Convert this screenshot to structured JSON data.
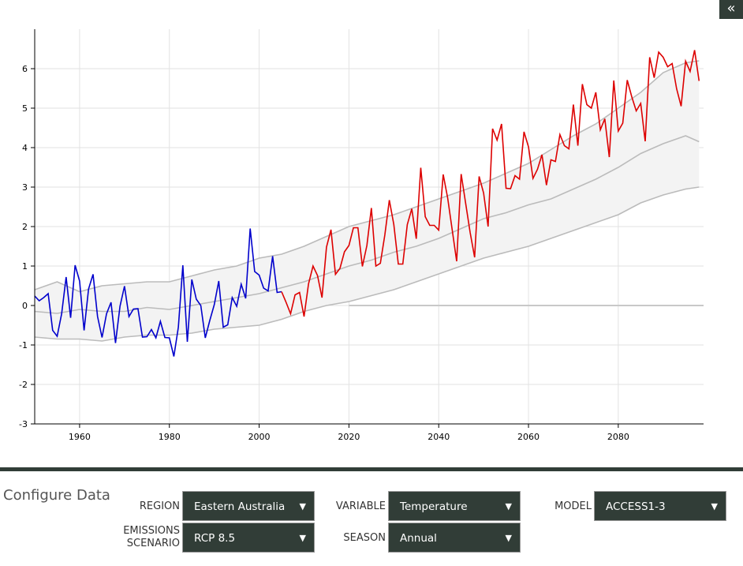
{
  "collapse_button": "«",
  "chart_data": {
    "type": "line",
    "title": "",
    "xlabel": "",
    "ylabel": "",
    "xlim": [
      1950,
      2099
    ],
    "ylim": [
      -3,
      7
    ],
    "x_ticks": [
      1960,
      1980,
      2000,
      2020,
      2040,
      2060,
      2080
    ],
    "y_ticks": [
      -3,
      -2,
      -1,
      0,
      1,
      2,
      3,
      4,
      5,
      6
    ],
    "grid": true,
    "colors": {
      "historical": "#0000cc",
      "projection": "#dd0000",
      "band": "#bbbbbb",
      "band_fill": "#f3f3f3"
    },
    "historical": {
      "start_year": 1950,
      "values": [
        0.24,
        0.12,
        0.2,
        0.3,
        -0.63,
        -0.78,
        -0.21,
        0.72,
        -0.31,
        1.02,
        0.62,
        -0.63,
        0.42,
        0.79,
        -0.28,
        -0.81,
        -0.21,
        0.08,
        -0.95,
        -0.02,
        0.49,
        -0.28,
        -0.09,
        -0.08,
        -0.8,
        -0.79,
        -0.61,
        -0.82,
        -0.4,
        -0.81,
        -0.82,
        -1.29,
        -0.55,
        1.02,
        -0.92,
        0.66,
        0.16,
        0.0,
        -0.82,
        -0.38,
        0.02,
        0.62,
        -0.55,
        -0.49,
        0.2,
        -0.02,
        0.54,
        0.18,
        1.95,
        0.86,
        0.77,
        0.44,
        0.37,
        1.25,
        0.33,
        0.35
      ]
    },
    "projection": {
      "start_year": 2006,
      "values": [
        0.08,
        -0.21,
        0.27,
        0.33,
        -0.28,
        0.55,
        1.0,
        0.76,
        0.2,
        1.48,
        1.92,
        0.79,
        0.94,
        1.36,
        1.52,
        1.97,
        1.97,
        0.99,
        1.52,
        2.47,
        1.0,
        1.07,
        1.79,
        2.67,
        2.05,
        1.05,
        1.05,
        2.05,
        2.45,
        1.69,
        3.49,
        2.25,
        2.03,
        2.03,
        1.91,
        3.32,
        2.72,
        1.92,
        1.12,
        3.33,
        2.59,
        1.85,
        1.22,
        3.27,
        2.85,
        2.0,
        4.48,
        4.19,
        4.6,
        2.97,
        2.96,
        3.29,
        3.2,
        4.4,
        4.02,
        3.22,
        3.45,
        3.82,
        3.05,
        3.69,
        3.65,
        4.33,
        4.05,
        3.97,
        5.09,
        4.05,
        5.61,
        5.09,
        5.0,
        5.4,
        4.45,
        4.73,
        3.76,
        5.7,
        4.42,
        4.62,
        5.71,
        5.29,
        4.93,
        5.12,
        4.16,
        6.29,
        5.77,
        6.42,
        6.29,
        6.05,
        6.13,
        5.49,
        5.05,
        6.19,
        5.93,
        6.47,
        5.69
      ]
    },
    "band_years": [
      1950,
      1955,
      1960,
      1965,
      1970,
      1975,
      1980,
      1985,
      1990,
      1995,
      2000,
      2005,
      2010,
      2015,
      2020,
      2025,
      2030,
      2035,
      2040,
      2045,
      2050,
      2055,
      2060,
      2065,
      2070,
      2075,
      2080,
      2085,
      2090,
      2095,
      2098
    ],
    "band_upper": [
      0.4,
      0.6,
      0.35,
      0.5,
      0.55,
      0.6,
      0.6,
      0.75,
      0.9,
      1.0,
      1.2,
      1.3,
      1.5,
      1.75,
      2.0,
      2.15,
      2.3,
      2.5,
      2.7,
      2.9,
      3.1,
      3.35,
      3.6,
      3.95,
      4.3,
      4.6,
      5.0,
      5.4,
      5.9,
      6.15,
      6.2
    ],
    "band_median": [
      -0.15,
      -0.2,
      -0.1,
      -0.15,
      -0.15,
      -0.05,
      -0.1,
      0.0,
      0.1,
      0.2,
      0.3,
      0.45,
      0.6,
      0.8,
      1.0,
      1.15,
      1.35,
      1.5,
      1.7,
      1.95,
      2.2,
      2.35,
      2.55,
      2.7,
      2.95,
      3.2,
      3.5,
      3.85,
      4.1,
      4.3,
      4.15
    ],
    "band_lower": [
      -0.8,
      -0.85,
      -0.85,
      -0.9,
      -0.8,
      -0.75,
      -0.75,
      -0.7,
      -0.6,
      -0.55,
      -0.5,
      -0.35,
      -0.15,
      0.0,
      0.1,
      0.25,
      0.4,
      0.6,
      0.8,
      1.0,
      1.2,
      1.35,
      1.5,
      1.7,
      1.9,
      2.1,
      2.3,
      2.6,
      2.8,
      2.95,
      3.0
    ],
    "baseline": {
      "from": 2020,
      "to": 2099,
      "value": 0
    }
  },
  "config": {
    "title": "Configure Data",
    "region": {
      "label": "REGION",
      "value": "Eastern Australia"
    },
    "scenario": {
      "label1": "EMISSIONS",
      "label2": "SCENARIO",
      "value": "RCP 8.5"
    },
    "variable": {
      "label": "VARIABLE",
      "value": "Temperature"
    },
    "season": {
      "label": "SEASON",
      "value": "Annual"
    },
    "model": {
      "label": "MODEL",
      "value": "ACCESS1-3"
    },
    "arrow": "▼"
  }
}
